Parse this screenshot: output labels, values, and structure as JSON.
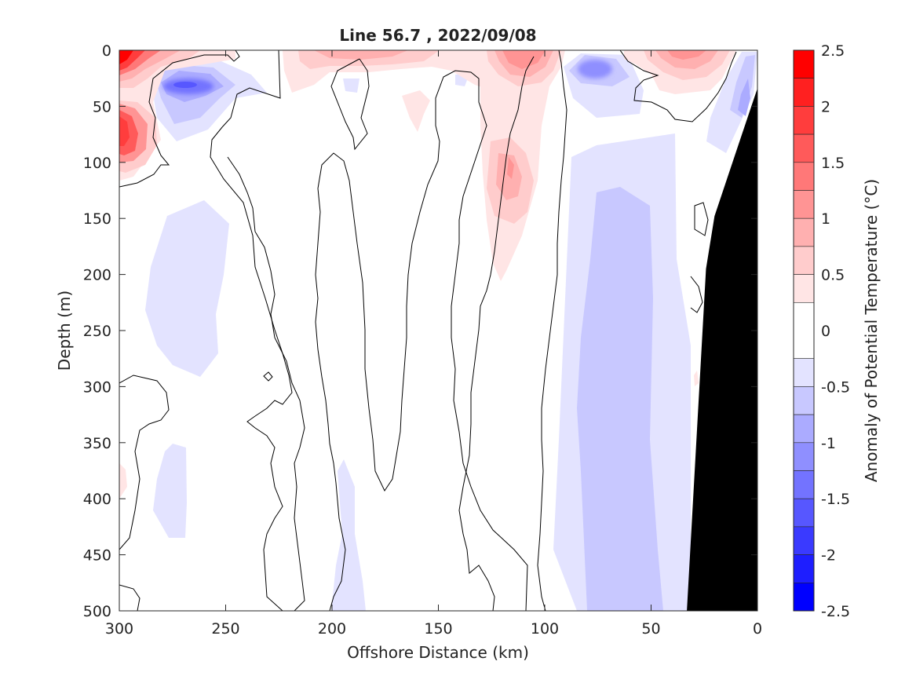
{
  "chart_data": {
    "type": "heatmap",
    "title": "Line 56.7 , 2022/09/08",
    "xlabel": "Offshore Distance (km)",
    "ylabel": "Depth (m)",
    "xlim": [
      300,
      0
    ],
    "ylim": [
      500,
      0
    ],
    "x_reversed": true,
    "y_reversed": true,
    "xticks": [
      "300",
      "250",
      "200",
      "150",
      "100",
      "50",
      "0"
    ],
    "yticks": [
      "0",
      "50",
      "100",
      "150",
      "200",
      "250",
      "300",
      "350",
      "400",
      "450",
      "500"
    ],
    "colorbar": {
      "label": "Anomaly of Potential Temperature (°C)",
      "range": [
        -2.5,
        2.5
      ],
      "ticks": [
        "2.5",
        "2",
        "1.5",
        "1",
        "0.5",
        "0",
        "-0.5",
        "-1",
        "-1.5",
        "-2",
        "-2.5"
      ],
      "levels": [
        {
          "range": [
            2.25,
            2.5
          ],
          "color": "#ff0000"
        },
        {
          "range": [
            2.0,
            2.25
          ],
          "color": "#ff2020"
        },
        {
          "range": [
            1.75,
            2.0
          ],
          "color": "#ff3d3d"
        },
        {
          "range": [
            1.5,
            1.75
          ],
          "color": "#ff5a5a"
        },
        {
          "range": [
            1.25,
            1.5
          ],
          "color": "#ff7878"
        },
        {
          "range": [
            1.0,
            1.25
          ],
          "color": "#ff9494"
        },
        {
          "range": [
            0.75,
            1.0
          ],
          "color": "#ffb0b0"
        },
        {
          "range": [
            0.5,
            0.75
          ],
          "color": "#ffcccc"
        },
        {
          "range": [
            0.25,
            0.5
          ],
          "color": "#ffe5e5"
        },
        {
          "range": [
            -0.25,
            0.25
          ],
          "color": "#ffffff"
        },
        {
          "range": [
            -0.5,
            -0.25
          ],
          "color": "#e3e3ff"
        },
        {
          "range": [
            -0.75,
            -0.5
          ],
          "color": "#c8c8ff"
        },
        {
          "range": [
            -1.0,
            -0.75
          ],
          "color": "#ababff"
        },
        {
          "range": [
            -1.25,
            -1.0
          ],
          "color": "#8f8fff"
        },
        {
          "range": [
            -1.5,
            -1.25
          ],
          "color": "#7373ff"
        },
        {
          "range": [
            -1.75,
            -1.5
          ],
          "color": "#5757ff"
        },
        {
          "range": [
            -2.0,
            -1.75
          ],
          "color": "#3a3aff"
        },
        {
          "range": [
            -2.25,
            -2.0
          ],
          "color": "#1e1eff"
        },
        {
          "range": [
            -2.5,
            -2.25
          ],
          "color": "#0000ff"
        }
      ]
    },
    "features": [
      {
        "name": "warm-core-surface-offshore",
        "dist_km": 297,
        "depth_m": 15,
        "anomaly": 2.2
      },
      {
        "name": "warm-core-50m-offshore",
        "dist_km": 297,
        "depth_m": 70,
        "anomaly": 1.6
      },
      {
        "name": "cold-core-270km",
        "dist_km": 268,
        "depth_m": 33,
        "anomaly": -1.6
      },
      {
        "name": "warm-core-113km",
        "dist_km": 113,
        "depth_m": 105,
        "anomaly": 1.1
      },
      {
        "name": "warm-core-surface-108km",
        "dist_km": 108,
        "depth_m": 15,
        "anomaly": 1.2
      },
      {
        "name": "cold-core-75km",
        "dist_km": 75,
        "depth_m": 20,
        "anomaly": -1.0
      },
      {
        "name": "warm-core-surface-30km",
        "dist_km": 32,
        "depth_m": 10,
        "anomaly": 1.3
      },
      {
        "name": "cold-core-nearshore",
        "dist_km": 8,
        "depth_m": 40,
        "anomaly": -0.8
      },
      {
        "name": "cold-band-65km",
        "dist_km": 65,
        "depth_m": 300,
        "anomaly": -0.6
      },
      {
        "name": "cold-patch-265km",
        "dist_km": 265,
        "depth_m": 230,
        "anomaly": -0.4
      }
    ],
    "bathymetry": {
      "color": "#000000",
      "profile": [
        {
          "dist_km": 0,
          "depth_m": 35
        },
        {
          "dist_km": 8,
          "depth_m": 80
        },
        {
          "dist_km": 20,
          "depth_m": 148
        },
        {
          "dist_km": 24,
          "depth_m": 195
        },
        {
          "dist_km": 33,
          "depth_m": 500
        }
      ]
    }
  }
}
